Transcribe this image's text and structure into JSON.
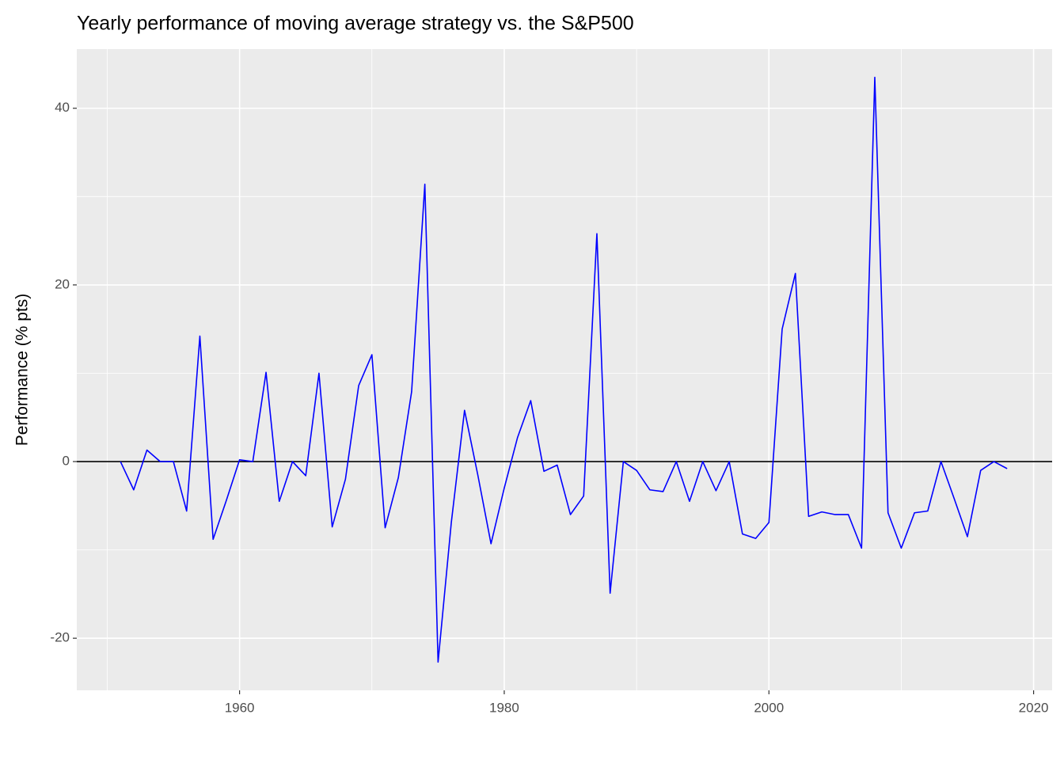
{
  "chart_data": {
    "type": "line",
    "title": "Yearly performance of moving average strategy vs. the S&P500",
    "y_label": "Performance (% pts)",
    "x": [
      1951,
      1952,
      1953,
      1954,
      1955,
      1956,
      1957,
      1958,
      1959,
      1960,
      1961,
      1962,
      1963,
      1964,
      1965,
      1966,
      1967,
      1968,
      1969,
      1970,
      1971,
      1972,
      1973,
      1974,
      1975,
      1976,
      1977,
      1978,
      1979,
      1980,
      1981,
      1982,
      1983,
      1984,
      1985,
      1986,
      1987,
      1988,
      1989,
      1990,
      1991,
      1992,
      1993,
      1994,
      1995,
      1996,
      1997,
      1998,
      1999,
      2000,
      2001,
      2002,
      2003,
      2004,
      2005,
      2006,
      2007,
      2008,
      2009,
      2010,
      2011,
      2012,
      2013,
      2014,
      2015,
      2016,
      2017,
      2018
    ],
    "series": [
      {
        "color": "#0000ff",
        "values": [
          0,
          -3.2,
          1.3,
          0,
          0,
          -5.6,
          14.2,
          -8.8,
          -4.4,
          0.2,
          0,
          10.1,
          -4.5,
          0,
          -1.6,
          10,
          -7.4,
          -2,
          8.6,
          12.1,
          -7.5,
          -1.8,
          7.9,
          31.4,
          -22.7,
          -6.9,
          5.8,
          -1.5,
          -9.3,
          -3,
          2.7,
          6.9,
          -1.1,
          -0.4,
          -6,
          -3.9,
          25.8,
          -14.9,
          0,
          -1,
          -3.2,
          -3.4,
          0,
          -4.5,
          0,
          -3.3,
          0,
          -8.2,
          -8.7,
          -6.9,
          15,
          21.3,
          -6.2,
          -5.7,
          -6,
          -6,
          -9.8,
          43.5,
          -5.8,
          -9.8,
          -5.8,
          -5.6,
          0,
          -4.2,
          -8.5,
          -1,
          0,
          -0.8
        ]
      }
    ],
    "xlim": [
      1947.7,
      2021.4
    ],
    "ylim": [
      -25.9,
      46.7
    ],
    "xticks": [
      1960,
      1980,
      2000,
      2020
    ],
    "yticks": [
      -20,
      0,
      20,
      40
    ],
    "x_minor_ticks": [
      1950,
      1970,
      1990,
      2010
    ],
    "y_minor_ticks": [
      -10,
      10,
      30
    ],
    "hline": 0,
    "hline_color": "#000000",
    "grid": true
  }
}
